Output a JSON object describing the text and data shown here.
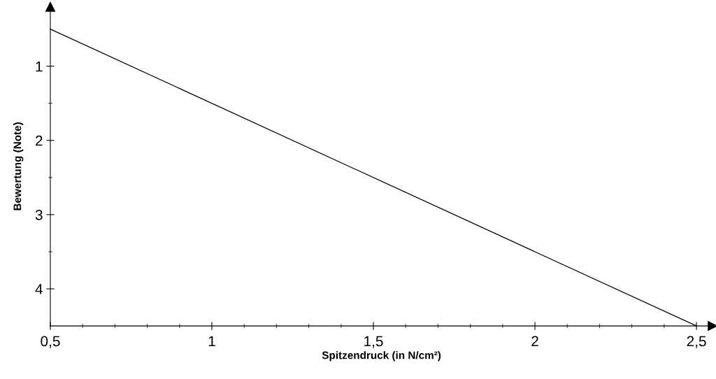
{
  "chart_data": {
    "type": "line",
    "xlabel": "Spitzendruck (in N/cm²)",
    "ylabel": "Bewertung (Note)",
    "x": [
      0.5,
      2.5
    ],
    "series": [
      {
        "color": "#000000",
        "values": [
          0.5,
          4.5
        ]
      }
    ],
    "xlim": [
      0.5,
      2.55
    ],
    "ylim": [
      4.5,
      0.2
    ],
    "xticks": [
      {
        "value": 0.5,
        "label": "0,5"
      },
      {
        "value": 0.6,
        "label": null
      },
      {
        "value": 0.7,
        "label": null
      },
      {
        "value": 0.8,
        "label": null
      },
      {
        "value": 0.9,
        "label": null
      },
      {
        "value": 1,
        "label": "1"
      },
      {
        "value": 1.1,
        "label": null
      },
      {
        "value": 1.2,
        "label": null
      },
      {
        "value": 1.3,
        "label": null
      },
      {
        "value": 1.4,
        "label": null
      },
      {
        "value": 1.5,
        "label": "1,5"
      },
      {
        "value": 1.6,
        "label": null
      },
      {
        "value": 1.7,
        "label": null
      },
      {
        "value": 1.8,
        "label": null
      },
      {
        "value": 1.9,
        "label": null
      },
      {
        "value": 2,
        "label": "2"
      },
      {
        "value": 2.1,
        "label": null
      },
      {
        "value": 2.2,
        "label": null
      },
      {
        "value": 2.3,
        "label": null
      },
      {
        "value": 2.4,
        "label": null
      },
      {
        "value": 2.5,
        "label": "2,5"
      }
    ],
    "yticks": [
      1,
      {
        "value": 1.5,
        "label": null
      },
      2,
      {
        "value": 2.5,
        "label": null
      },
      3,
      {
        "value": 3.5,
        "label": null
      },
      4
    ],
    "grid": false,
    "marker": "none",
    "line_style": "solid"
  }
}
